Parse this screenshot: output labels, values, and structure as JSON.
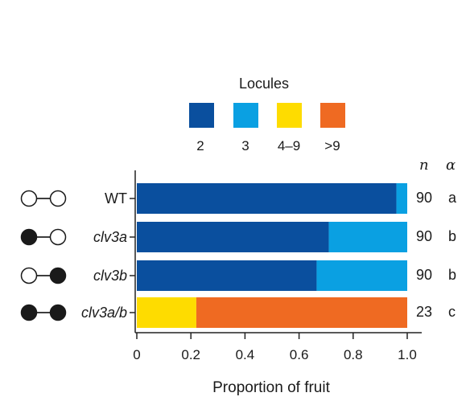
{
  "chart_data": {
    "type": "bar",
    "orientation": "horizontal",
    "stacked": true,
    "legend_title": "Locules",
    "legend_position": "top",
    "xlabel": "Proportion of fruit",
    "xlim": [
      0,
      1.0
    ],
    "xticks": [
      "0",
      "0.2",
      "0.4",
      "0.6",
      "0.8",
      "1.0"
    ],
    "categories": [
      "WT",
      "clv3a",
      "clv3b",
      "clv3a/b"
    ],
    "genotype_markers": [
      [
        "open",
        "open"
      ],
      [
        "filled",
        "open"
      ],
      [
        "open",
        "filled"
      ],
      [
        "filled",
        "filled"
      ]
    ],
    "series": [
      {
        "name": "2",
        "color": "#0a4f9e",
        "values": [
          0.96,
          0.71,
          0.665,
          0
        ]
      },
      {
        "name": "3",
        "color": "#0aa0e2",
        "values": [
          0.04,
          0.29,
          0.335,
          0
        ]
      },
      {
        "name": "4–9",
        "color": "#fedc00",
        "values": [
          0,
          0,
          0,
          0.22
        ]
      },
      {
        "name": ">9",
        "color": "#ef6a22",
        "values": [
          0,
          0,
          0,
          0.78
        ]
      }
    ],
    "n_header": "n",
    "alpha_header": "α",
    "n": [
      "90",
      "90",
      "90",
      "23"
    ],
    "letters": [
      "a",
      "b",
      "b",
      "c"
    ],
    "grid": false
  }
}
